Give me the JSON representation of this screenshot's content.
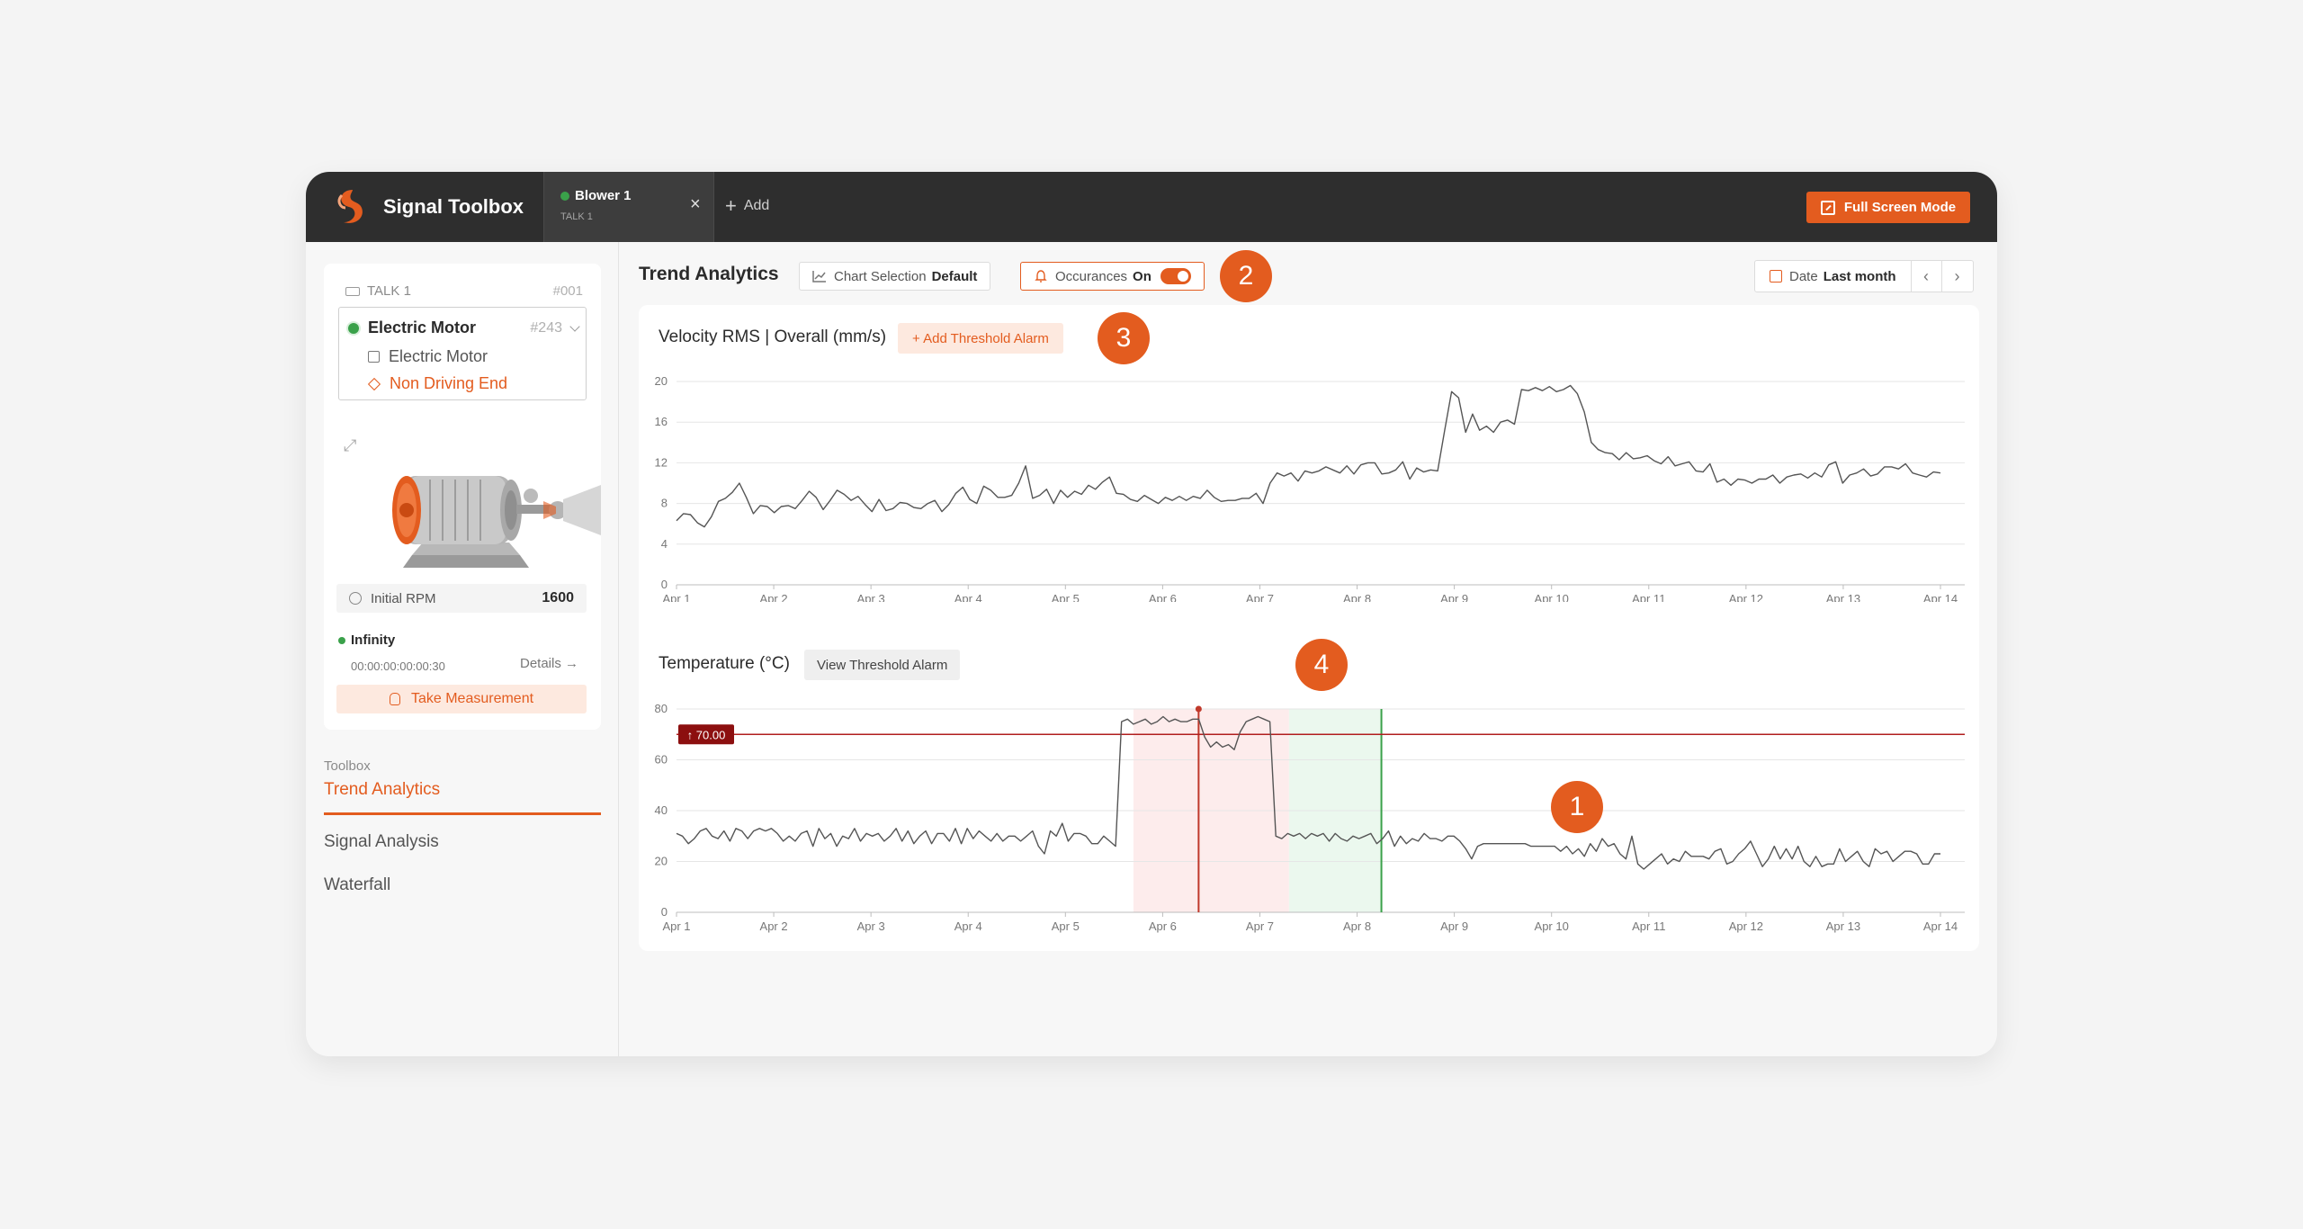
{
  "app": {
    "name": "Signal Toolbox",
    "tab": {
      "title": "Blower 1",
      "subtitle": "TALK 1",
      "close": "×"
    },
    "add_tab": "Add",
    "fullscreen": "Full Screen Mode"
  },
  "sidebar": {
    "talk_label": "TALK 1",
    "talk_id": "#001",
    "asset_name": "Electric Motor",
    "asset_id": "#243",
    "component": "Electric Motor",
    "location": "Non Driving End",
    "rpm_label": "Initial RPM",
    "rpm_value": "1600",
    "status": "Infinity",
    "timer": "00:00:00:00:00:30",
    "details": "Details →",
    "take_measurement": "Take Measurement",
    "toolbox_label": "Toolbox",
    "nav": [
      "Trend Analytics",
      "Signal Analysis",
      "Waterfall"
    ]
  },
  "main": {
    "title": "Trend Analytics",
    "chart_selection_label": "Chart Selection",
    "chart_selection_value": "Default",
    "occurances_label": "Occurances",
    "occurances_value": "On",
    "date_label": "Date",
    "date_value": "Last month",
    "prev": "‹",
    "next": "›",
    "badges": [
      "1",
      "2",
      "3",
      "4"
    ]
  },
  "colors": {
    "accent": "#e35c1f",
    "threshold": "#b11e1e",
    "topbar": "#2e2e2e"
  },
  "chart_data": [
    {
      "type": "line",
      "title": "Velocity RMS | Overall (mm/s)",
      "action": "+ Add Threshold Alarm",
      "ylim": [
        0,
        20
      ],
      "yticks": [
        "0",
        "4",
        "8",
        "12",
        "16",
        "20"
      ],
      "xticks": [
        "Apr 1",
        "Apr 2",
        "Apr 3",
        "Apr 4",
        "Apr 5",
        "Apr 6",
        "Apr 7",
        "Apr 8",
        "Apr 9",
        "Apr 10",
        "Apr 11",
        "Apr 12",
        "Apr 13",
        "Apr 14"
      ],
      "x_start": 1,
      "x_end": 14,
      "values": [
        6.3,
        7.0,
        6.9,
        6.1,
        5.7,
        6.7,
        8.2,
        8.5,
        9.1,
        10.0,
        8.6,
        7.0,
        7.8,
        7.7,
        7.1,
        7.7,
        7.8,
        7.5,
        8.3,
        9.2,
        8.6,
        7.4,
        8.3,
        9.3,
        8.9,
        8.3,
        8.7,
        7.9,
        7.2,
        8.4,
        7.3,
        7.5,
        8.1,
        8.0,
        7.6,
        7.5,
        8.0,
        8.3,
        7.2,
        7.9,
        9.0,
        9.6,
        8.4,
        8.0,
        9.7,
        9.3,
        8.6,
        8.6,
        8.8,
        10.0,
        11.7,
        8.5,
        8.8,
        9.4,
        8.0,
        9.3,
        8.6,
        9.2,
        8.9,
        9.8,
        9.4,
        10.1,
        10.6,
        9.0,
        8.9,
        8.4,
        8.2,
        8.8,
        8.4,
        8.0,
        8.6,
        8.3,
        8.7,
        8.3,
        8.7,
        8.5,
        9.3,
        8.6,
        8.2,
        8.3,
        8.3,
        8.5,
        8.5,
        9.0,
        8.0,
        10.0,
        11.0,
        10.7,
        11.0,
        10.2,
        11.2,
        11.0,
        11.2,
        11.6,
        11.3,
        11.0,
        11.7,
        10.9,
        11.8,
        12.0,
        12.0,
        10.9,
        11.0,
        11.3,
        12.1,
        10.4,
        11.5,
        11.1,
        11.3,
        11.2,
        15.2,
        19.0,
        18.4,
        15.0,
        16.8,
        15.2,
        15.6,
        15.0,
        16.0,
        16.2,
        15.8,
        19.2,
        19.1,
        19.4,
        19.1,
        19.5,
        19.0,
        19.2,
        19.6,
        18.8,
        17.0,
        14.0,
        13.3,
        13.0,
        12.9,
        12.3,
        13.0,
        12.4,
        12.5,
        12.7,
        12.2,
        11.9,
        12.6,
        11.7,
        11.9,
        12.1,
        11.2,
        11.1,
        11.9,
        10.1,
        10.4,
        9.8,
        10.4,
        10.3,
        10.0,
        10.4,
        10.4,
        10.8,
        10.0,
        10.6,
        10.8,
        10.9,
        10.5,
        11.0,
        10.6,
        11.8,
        12.1,
        10.0,
        10.8,
        11.0,
        11.4,
        10.7,
        10.9,
        11.6,
        11.6,
        11.4,
        11.9,
        11.0,
        10.8,
        10.6,
        11.1,
        11.0
      ]
    },
    {
      "type": "line",
      "title": "Temperature (°C)",
      "action": "View Threshold Alarm",
      "ylim": [
        0,
        80
      ],
      "yticks": [
        "0",
        "20",
        "40",
        "60",
        "80"
      ],
      "xticks": [
        "Apr 1",
        "Apr 2",
        "Apr 3",
        "Apr 4",
        "Apr 5",
        "Apr 6",
        "Apr 7",
        "Apr 8",
        "Apr 9",
        "Apr 10",
        "Apr 11",
        "Apr 12",
        "Apr 13",
        "Apr 14"
      ],
      "x_start": 1,
      "x_end": 14,
      "threshold": 70,
      "threshold_label": "↑ 70.00",
      "alarm_span": [
        5.7,
        7.3
      ],
      "cleared_span": [
        7.3,
        8.25
      ],
      "marker_x": 6.37,
      "values": [
        31,
        30,
        27,
        29,
        32,
        33,
        30,
        29,
        32,
        28,
        33,
        32,
        29,
        32,
        33,
        32,
        33,
        31,
        28,
        30,
        28,
        31,
        32,
        26,
        33,
        29,
        31,
        26,
        30,
        29,
        33,
        28,
        31,
        30,
        31,
        28,
        30,
        33,
        28,
        32,
        27,
        30,
        32,
        27,
        31,
        31,
        28,
        33,
        27,
        33,
        29,
        32,
        30,
        28,
        31,
        28,
        30,
        30,
        28,
        30,
        32,
        26,
        23,
        32,
        30,
        35,
        28,
        31,
        31,
        30,
        27,
        27,
        30,
        28,
        26,
        75,
        76,
        74,
        75,
        76,
        74,
        75,
        77,
        75,
        76,
        75,
        75,
        76,
        76,
        69,
        65,
        67,
        65,
        66,
        64,
        71,
        75,
        76,
        77,
        76,
        75,
        30,
        29,
        31,
        30,
        31,
        29,
        31,
        30,
        31,
        28,
        31,
        29,
        28,
        30,
        29,
        30,
        31,
        27,
        29,
        32,
        26,
        30,
        27,
        29,
        28,
        31,
        29,
        29,
        28,
        30,
        30,
        28,
        25,
        21,
        26,
        27,
        27,
        27,
        27,
        27,
        27,
        27,
        27,
        26,
        26,
        26,
        26,
        26,
        24,
        26,
        23,
        25,
        22,
        27,
        24,
        29,
        26,
        27,
        23,
        21,
        30,
        19,
        17,
        19,
        21,
        23,
        19,
        21,
        20,
        24,
        22,
        22,
        22,
        21,
        24,
        25,
        19,
        20,
        23,
        25,
        28,
        23,
        18,
        21,
        26,
        21,
        25,
        21,
        26,
        20,
        18,
        22,
        18,
        19,
        19,
        25,
        20,
        22,
        24,
        20,
        18,
        25,
        23,
        24,
        20,
        22,
        24,
        24,
        23,
        19,
        19,
        23,
        23
      ]
    }
  ]
}
